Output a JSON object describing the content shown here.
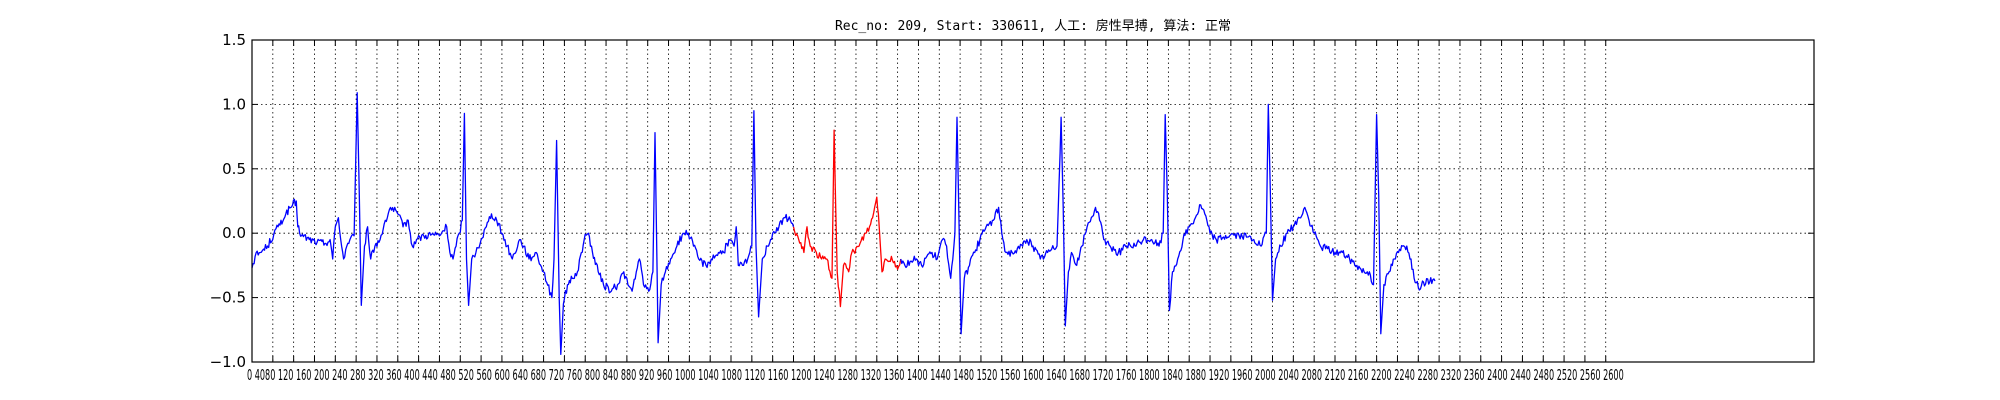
{
  "chart_data": {
    "type": "line",
    "title": "Rec_no: 209, Start: 330611, 人工: 房性早搏, 算法: 正常",
    "xlabel": "",
    "ylabel": "",
    "xlim": [
      0,
      3000
    ],
    "ylim": [
      -1.0,
      1.5
    ],
    "grid": true,
    "grid_style": "dotted",
    "y_ticks": [
      -1.0,
      -0.5,
      0.0,
      0.5,
      1.0,
      1.5
    ],
    "y_tick_labels": [
      "−1.0",
      "−0.5",
      "0.0",
      "0.5",
      "1.0",
      "1.5"
    ],
    "x_ticks": [
      0,
      40,
      80,
      120,
      160,
      200,
      240,
      280,
      320,
      360,
      400,
      440,
      480,
      520,
      560,
      600,
      640,
      680,
      720,
      760,
      800,
      840,
      880,
      920,
      960,
      1000,
      1040,
      1080,
      1120,
      1160,
      1200,
      1240,
      1280,
      1320,
      1360,
      1400,
      1440,
      1480,
      1520,
      1560,
      1600,
      1640,
      1680,
      1720,
      1760,
      1800,
      1840,
      1880,
      1920,
      1960,
      2000,
      2040,
      2080,
      2120,
      2160,
      2200,
      2240,
      2280,
      2320,
      2360,
      2400,
      2440,
      2480,
      2520,
      2560,
      2600
    ],
    "x_tick_label_run": "0 4080 120 160 200 240 280 320 360 400 440 480 520 560 600 640 680 720 760 800 840 880 920 960 1000 1040 1080 1120 1160 1200 1240 1280 1320 1360 1400 1440 1480 1520 1560 1600 1640 1680 1720 1760 1800 1840 1880 1920 1960 2000 2040 2080 2120 2160 2200 2240 2280 2320 2360 2400 2440 2480 2520 2560 2600",
    "signal_end_x": 2600,
    "series": [
      {
        "color": "#0000ff",
        "keypoints": [
          [
            0,
            -0.27
          ],
          [
            6,
            -0.18
          ],
          [
            16,
            -0.15
          ],
          [
            30,
            -0.1
          ],
          [
            50,
            0.05
          ],
          [
            65,
            0.15
          ],
          [
            78,
            0.22
          ],
          [
            85,
            0.25
          ],
          [
            88,
            0.05
          ],
          [
            95,
            -0.02
          ],
          [
            110,
            -0.05
          ],
          [
            125,
            -0.07
          ],
          [
            140,
            -0.08
          ],
          [
            150,
            -0.05
          ],
          [
            155,
            -0.2
          ],
          [
            160,
            0.05
          ],
          [
            166,
            0.12
          ],
          [
            172,
            -0.1
          ],
          [
            176,
            -0.2
          ],
          [
            182,
            -0.1
          ],
          [
            188,
            -0.05
          ],
          [
            196,
            -0.02
          ],
          [
            202,
            1.09
          ],
          [
            206,
            0.3
          ],
          [
            210,
            -0.56
          ],
          [
            216,
            -0.1
          ],
          [
            222,
            0.05
          ],
          [
            228,
            -0.2
          ],
          [
            236,
            -0.1
          ],
          [
            246,
            -0.05
          ],
          [
            256,
            0.1
          ],
          [
            266,
            0.2
          ],
          [
            280,
            0.15
          ],
          [
            290,
            0.05
          ],
          [
            300,
            0.1
          ],
          [
            308,
            -0.1
          ],
          [
            316,
            -0.05
          ],
          [
            330,
            -0.02
          ],
          [
            345,
            -0.01
          ],
          [
            360,
            -0.02
          ],
          [
            374,
            0.05
          ],
          [
            380,
            -0.15
          ],
          [
            386,
            -0.2
          ],
          [
            392,
            -0.1
          ],
          [
            398,
            0.0
          ],
          [
            404,
            0.1
          ],
          [
            408,
            0.93
          ],
          [
            412,
            -0.2
          ],
          [
            416,
            -0.56
          ],
          [
            422,
            -0.2
          ],
          [
            430,
            -0.15
          ],
          [
            440,
            -0.05
          ],
          [
            450,
            0.05
          ],
          [
            460,
            0.15
          ],
          [
            470,
            0.1
          ],
          [
            480,
            0.0
          ],
          [
            490,
            -0.1
          ],
          [
            500,
            -0.2
          ],
          [
            514,
            -0.05
          ],
          [
            522,
            -0.1
          ],
          [
            532,
            -0.2
          ],
          [
            546,
            -0.15
          ],
          [
            560,
            -0.3
          ],
          [
            576,
            -0.5
          ],
          [
            580,
            -0.2
          ],
          [
            585,
            0.72
          ],
          [
            590,
            -0.5
          ],
          [
            593,
            -0.94
          ],
          [
            598,
            -0.55
          ],
          [
            606,
            -0.4
          ],
          [
            615,
            -0.35
          ],
          [
            625,
            -0.3
          ],
          [
            638,
            -0.05
          ],
          [
            646,
            0.0
          ],
          [
            654,
            -0.15
          ],
          [
            665,
            -0.3
          ],
          [
            675,
            -0.4
          ],
          [
            690,
            -0.45
          ],
          [
            702,
            -0.4
          ],
          [
            714,
            -0.3
          ],
          [
            722,
            -0.4
          ],
          [
            730,
            -0.45
          ],
          [
            738,
            -0.3
          ],
          [
            744,
            -0.2
          ],
          [
            752,
            -0.4
          ],
          [
            762,
            -0.45
          ],
          [
            770,
            -0.3
          ],
          [
            774,
            0.78
          ],
          [
            778,
            -0.3
          ],
          [
            780,
            -0.85
          ],
          [
            786,
            -0.4
          ],
          [
            794,
            -0.3
          ],
          [
            804,
            -0.2
          ],
          [
            816,
            -0.1
          ],
          [
            828,
            0.0
          ],
          [
            838,
            0.0
          ],
          [
            848,
            -0.1
          ],
          [
            858,
            -0.2
          ],
          [
            872,
            -0.25
          ],
          [
            882,
            -0.2
          ],
          [
            896,
            -0.15
          ],
          [
            906,
            -0.15
          ],
          [
            916,
            -0.05
          ],
          [
            926,
            -0.1
          ],
          [
            930,
            0.05
          ],
          [
            934,
            -0.25
          ],
          [
            944,
            -0.25
          ],
          [
            952,
            -0.2
          ],
          [
            960,
            -0.1
          ],
          [
            964,
            0.95
          ],
          [
            968,
            -0.1
          ],
          [
            973,
            -0.65
          ],
          [
            980,
            -0.2
          ],
          [
            990,
            -0.1
          ],
          [
            1000,
            0.0
          ],
          [
            1012,
            0.05
          ],
          [
            1024,
            0.12
          ],
          [
            1034,
            0.1
          ],
          [
            1040,
            0.05
          ]
        ]
      },
      {
        "color": "#ff0000",
        "keypoints": [
          [
            1040,
            0.05
          ],
          [
            1050,
            -0.05
          ],
          [
            1060,
            -0.15
          ],
          [
            1066,
            0.05
          ],
          [
            1072,
            -0.1
          ],
          [
            1084,
            -0.15
          ],
          [
            1094,
            -0.2
          ],
          [
            1104,
            -0.2
          ],
          [
            1114,
            -0.35
          ],
          [
            1118,
            0.8
          ],
          [
            1121,
            0.2
          ],
          [
            1124,
            -0.3
          ],
          [
            1130,
            -0.57
          ],
          [
            1136,
            -0.25
          ],
          [
            1146,
            -0.3
          ],
          [
            1152,
            -0.15
          ],
          [
            1166,
            -0.1
          ],
          [
            1178,
            0.0
          ],
          [
            1186,
            0.05
          ],
          [
            1192,
            0.12
          ],
          [
            1200,
            0.28
          ],
          [
            1203,
            0.15
          ],
          [
            1210,
            -0.3
          ],
          [
            1216,
            -0.2
          ],
          [
            1222,
            -0.22
          ],
          [
            1228,
            -0.18
          ],
          [
            1234,
            -0.22
          ],
          [
            1240,
            -0.28
          ],
          [
            1246,
            -0.2
          ]
        ]
      },
      {
        "color": "#0000ff",
        "keypoints": [
          [
            1246,
            -0.2
          ],
          [
            1254,
            -0.25
          ],
          [
            1264,
            -0.22
          ],
          [
            1276,
            -0.2
          ],
          [
            1286,
            -0.25
          ],
          [
            1296,
            -0.18
          ],
          [
            1306,
            -0.15
          ],
          [
            1316,
            -0.2
          ],
          [
            1326,
            -0.05
          ],
          [
            1334,
            -0.1
          ],
          [
            1342,
            -0.35
          ],
          [
            1350,
            0.0
          ],
          [
            1354,
            0.9
          ],
          [
            1357,
            0.3
          ],
          [
            1362,
            -0.78
          ],
          [
            1368,
            -0.35
          ],
          [
            1378,
            -0.25
          ],
          [
            1388,
            -0.15
          ],
          [
            1398,
            -0.05
          ],
          [
            1410,
            0.05
          ],
          [
            1424,
            0.1
          ],
          [
            1434,
            0.2
          ],
          [
            1440,
            0.0
          ],
          [
            1448,
            -0.15
          ],
          [
            1460,
            -0.15
          ],
          [
            1474,
            -0.12
          ],
          [
            1488,
            -0.05
          ],
          [
            1500,
            -0.1
          ],
          [
            1514,
            -0.2
          ],
          [
            1528,
            -0.15
          ],
          [
            1546,
            -0.1
          ],
          [
            1554,
            0.9
          ],
          [
            1558,
            0.2
          ],
          [
            1562,
            -0.72
          ],
          [
            1568,
            -0.3
          ],
          [
            1574,
            -0.15
          ],
          [
            1584,
            -0.25
          ],
          [
            1594,
            -0.1
          ],
          [
            1604,
            0.05
          ],
          [
            1612,
            0.12
          ],
          [
            1620,
            0.2
          ],
          [
            1628,
            0.1
          ],
          [
            1636,
            -0.05
          ],
          [
            1648,
            -0.1
          ],
          [
            1664,
            -0.15
          ],
          [
            1680,
            -0.1
          ],
          [
            1696,
            -0.1
          ],
          [
            1712,
            -0.05
          ],
          [
            1728,
            -0.05
          ],
          [
            1742,
            -0.1
          ],
          [
            1750,
            0.0
          ],
          [
            1754,
            0.92
          ],
          [
            1758,
            0.3
          ],
          [
            1762,
            -0.6
          ],
          [
            1768,
            -0.3
          ],
          [
            1778,
            -0.2
          ],
          [
            1788,
            -0.05
          ],
          [
            1800,
            0.05
          ],
          [
            1812,
            0.12
          ],
          [
            1822,
            0.22
          ],
          [
            1830,
            0.15
          ],
          [
            1840,
            0.0
          ],
          [
            1852,
            -0.05
          ],
          [
            1866,
            -0.03
          ],
          [
            1880,
            -0.01
          ],
          [
            1896,
            -0.02
          ],
          [
            1910,
            -0.03
          ],
          [
            1924,
            -0.05
          ],
          [
            1938,
            -0.1
          ],
          [
            1948,
            0.0
          ],
          [
            1952,
            1.0
          ],
          [
            1956,
            0.3
          ],
          [
            1960,
            -0.52
          ],
          [
            1966,
            -0.2
          ],
          [
            1976,
            -0.1
          ],
          [
            1988,
            0.0
          ],
          [
            2000,
            0.05
          ],
          [
            2012,
            0.12
          ],
          [
            2022,
            0.2
          ],
          [
            2030,
            0.1
          ],
          [
            2040,
            0.0
          ],
          [
            2052,
            -0.1
          ],
          [
            2066,
            -0.12
          ],
          [
            2080,
            -0.15
          ],
          [
            2094,
            -0.15
          ],
          [
            2108,
            -0.2
          ],
          [
            2122,
            -0.25
          ],
          [
            2136,
            -0.3
          ],
          [
            2146,
            -0.3
          ],
          [
            2154,
            -0.4
          ],
          [
            2160,
            0.92
          ],
          [
            2164,
            0.3
          ],
          [
            2168,
            -0.78
          ],
          [
            2174,
            -0.4
          ],
          [
            2184,
            -0.3
          ],
          [
            2194,
            -0.2
          ],
          [
            2202,
            -0.15
          ],
          [
            2210,
            -0.1
          ],
          [
            2218,
            -0.1
          ],
          [
            2226,
            -0.2
          ],
          [
            2232,
            -0.35
          ],
          [
            2240,
            -0.42
          ],
          [
            2250,
            -0.38
          ],
          [
            2262,
            -0.38
          ],
          [
            2268,
            -0.36
          ],
          [
            2272,
            -0.37
          ]
        ]
      }
    ]
  }
}
